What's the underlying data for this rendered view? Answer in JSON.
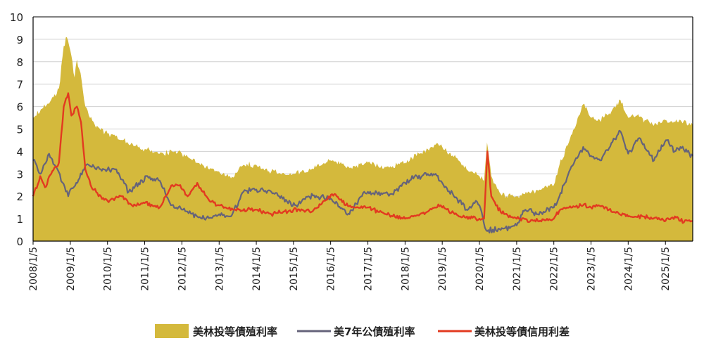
{
  "chart_data": {
    "type": "area",
    "title": "",
    "xlabel": "",
    "ylabel": "",
    "ylim": [
      0,
      10
    ],
    "yticks": [
      0,
      1,
      2,
      3,
      4,
      5,
      6,
      7,
      8,
      9,
      10
    ],
    "xlim": [
      "2008-01-05",
      "2025-09-30"
    ],
    "xtick_labels": [
      "2008/1/5",
      "2009/1/5",
      "2010/1/5",
      "2011/1/5",
      "2012/1/5",
      "2013/1/5",
      "2014/1/5",
      "2015/1/5",
      "2016/1/5",
      "2017/1/5",
      "2018/1/5",
      "2019/1/5",
      "2020/1/5",
      "2021/1/5",
      "2022/1/5",
      "2023/1/5",
      "2024/1/5",
      "2025/1/5"
    ],
    "grid": "horizontal",
    "legend_position": "bottom",
    "colors": {
      "area": "#D4B93C",
      "treasury": "#65637A",
      "spread": "#E23A20",
      "grid": "#D0D0D0"
    },
    "series": [
      {
        "name": "美林投等債殖利率",
        "style": "area",
        "x": [
          "2008-01-05",
          "2008-04-01",
          "2008-07-01",
          "2008-09-15",
          "2008-11-01",
          "2008-12-01",
          "2009-01-05",
          "2009-02-15",
          "2009-03-10",
          "2009-04-15",
          "2009-06-01",
          "2009-09-01",
          "2010-01-05",
          "2010-06-01",
          "2011-01-05",
          "2011-06-01",
          "2011-10-01",
          "2012-01-05",
          "2012-06-01",
          "2012-10-01",
          "2013-01-05",
          "2013-05-01",
          "2013-09-01",
          "2014-01-05",
          "2014-06-01",
          "2015-01-05",
          "2015-07-01",
          "2016-01-05",
          "2016-07-01",
          "2017-01-05",
          "2017-07-01",
          "2018-01-05",
          "2018-06-01",
          "2018-11-01",
          "2019-01-05",
          "2019-06-01",
          "2019-09-01",
          "2020-01-05",
          "2020-02-20",
          "2020-03-20",
          "2020-05-01",
          "2020-08-01",
          "2021-01-05",
          "2021-06-01",
          "2022-01-05",
          "2022-03-01",
          "2022-06-01",
          "2022-10-20",
          "2023-01-05",
          "2023-04-01",
          "2023-07-01",
          "2023-10-20",
          "2024-01-05",
          "2024-04-01",
          "2024-09-01",
          "2025-01-05",
          "2025-04-10",
          "2025-06-01",
          "2025-09-30"
        ],
        "values": [
          5.5,
          5.9,
          6.3,
          6.8,
          8.7,
          9.1,
          8.5,
          7.3,
          8.1,
          7.5,
          6.0,
          5.2,
          4.8,
          4.5,
          4.1,
          3.9,
          4.0,
          3.9,
          3.5,
          3.2,
          3.1,
          2.8,
          3.4,
          3.4,
          3.1,
          3.0,
          3.2,
          3.6,
          3.3,
          3.5,
          3.3,
          3.5,
          3.9,
          4.3,
          4.2,
          3.7,
          3.2,
          2.9,
          2.7,
          4.4,
          2.9,
          2.1,
          2.0,
          2.2,
          2.5,
          3.4,
          4.4,
          6.1,
          5.5,
          5.4,
          5.7,
          6.3,
          5.5,
          5.6,
          5.2,
          5.4,
          5.3,
          5.4,
          5.2
        ]
      },
      {
        "name": "美7年公債殖利率",
        "style": "line",
        "x": [
          "2008-01-05",
          "2008-03-15",
          "2008-06-10",
          "2008-09-01",
          "2008-12-15",
          "2009-01-05",
          "2009-03-15",
          "2009-06-10",
          "2009-12-01",
          "2010-04-01",
          "2010-08-01",
          "2011-02-01",
          "2011-06-01",
          "2011-09-20",
          "2012-01-05",
          "2012-07-20",
          "2013-01-05",
          "2013-05-01",
          "2013-09-01",
          "2014-01-05",
          "2014-06-01",
          "2015-01-30",
          "2015-06-01",
          "2016-01-05",
          "2016-07-08",
          "2016-11-30",
          "2017-01-05",
          "2017-09-01",
          "2018-01-05",
          "2018-05-01",
          "2018-11-01",
          "2019-01-05",
          "2019-08-30",
          "2019-12-01",
          "2020-01-05",
          "2020-03-10",
          "2020-08-01",
          "2021-01-05",
          "2021-03-31",
          "2021-08-01",
          "2022-01-05",
          "2022-03-01",
          "2022-06-15",
          "2022-10-20",
          "2023-01-05",
          "2023-04-05",
          "2023-10-20",
          "2024-01-05",
          "2024-04-25",
          "2024-09-15",
          "2025-01-10",
          "2025-04-05",
          "2025-06-01",
          "2025-09-30"
        ],
        "values": [
          3.6,
          3.0,
          3.9,
          3.2,
          2.0,
          2.3,
          2.6,
          3.4,
          3.2,
          3.2,
          2.2,
          2.9,
          2.7,
          1.6,
          1.4,
          1.0,
          1.2,
          1.1,
          2.2,
          2.3,
          2.2,
          1.6,
          2.0,
          1.9,
          1.2,
          2.2,
          2.2,
          2.1,
          2.6,
          2.9,
          3.0,
          2.6,
          1.4,
          1.8,
          1.6,
          0.5,
          0.5,
          0.7,
          1.4,
          1.2,
          1.5,
          2.0,
          3.2,
          4.2,
          3.8,
          3.6,
          4.9,
          3.9,
          4.6,
          3.6,
          4.5,
          4.0,
          4.2,
          3.8
        ]
      },
      {
        "name": "美林投等債信用利差",
        "style": "line",
        "x": [
          "2008-01-05",
          "2008-03-15",
          "2008-05-01",
          "2008-07-01",
          "2008-09-15",
          "2008-11-01",
          "2008-12-15",
          "2009-01-15",
          "2009-03-10",
          "2009-04-20",
          "2009-06-01",
          "2009-08-01",
          "2009-11-01",
          "2010-01-05",
          "2010-05-25",
          "2010-09-01",
          "2011-01-05",
          "2011-06-01",
          "2011-10-04",
          "2011-12-20",
          "2012-03-01",
          "2012-06-04",
          "2012-10-01",
          "2013-01-05",
          "2013-06-01",
          "2014-01-05",
          "2014-06-01",
          "2015-01-05",
          "2015-07-01",
          "2016-02-11",
          "2016-06-01",
          "2016-10-01",
          "2017-01-05",
          "2017-07-01",
          "2018-01-05",
          "2018-06-01",
          "2018-12-20",
          "2019-01-05",
          "2019-07-01",
          "2019-12-01",
          "2020-01-05",
          "2020-02-20",
          "2020-03-23",
          "2020-05-01",
          "2020-08-01",
          "2021-01-05",
          "2021-08-01",
          "2022-01-05",
          "2022-03-08",
          "2022-07-05",
          "2022-10-20",
          "2023-01-05",
          "2023-03-20",
          "2023-07-01",
          "2024-01-05",
          "2024-06-01",
          "2025-01-05",
          "2025-04-08",
          "2025-06-01",
          "2025-09-30"
        ],
        "values": [
          2.0,
          2.9,
          2.4,
          3.0,
          3.5,
          6.0,
          6.6,
          5.6,
          6.0,
          5.3,
          3.2,
          2.4,
          2.0,
          1.8,
          2.0,
          1.6,
          1.7,
          1.5,
          2.5,
          2.5,
          2.0,
          2.6,
          1.8,
          1.6,
          1.4,
          1.4,
          1.2,
          1.4,
          1.3,
          2.1,
          1.6,
          1.5,
          1.5,
          1.2,
          1.0,
          1.2,
          1.6,
          1.5,
          1.1,
          1.0,
          1.0,
          1.0,
          4.0,
          2.0,
          1.3,
          1.0,
          0.9,
          1.0,
          1.4,
          1.5,
          1.6,
          1.5,
          1.6,
          1.4,
          1.1,
          1.1,
          0.9,
          1.1,
          0.9,
          0.9
        ]
      }
    ]
  }
}
